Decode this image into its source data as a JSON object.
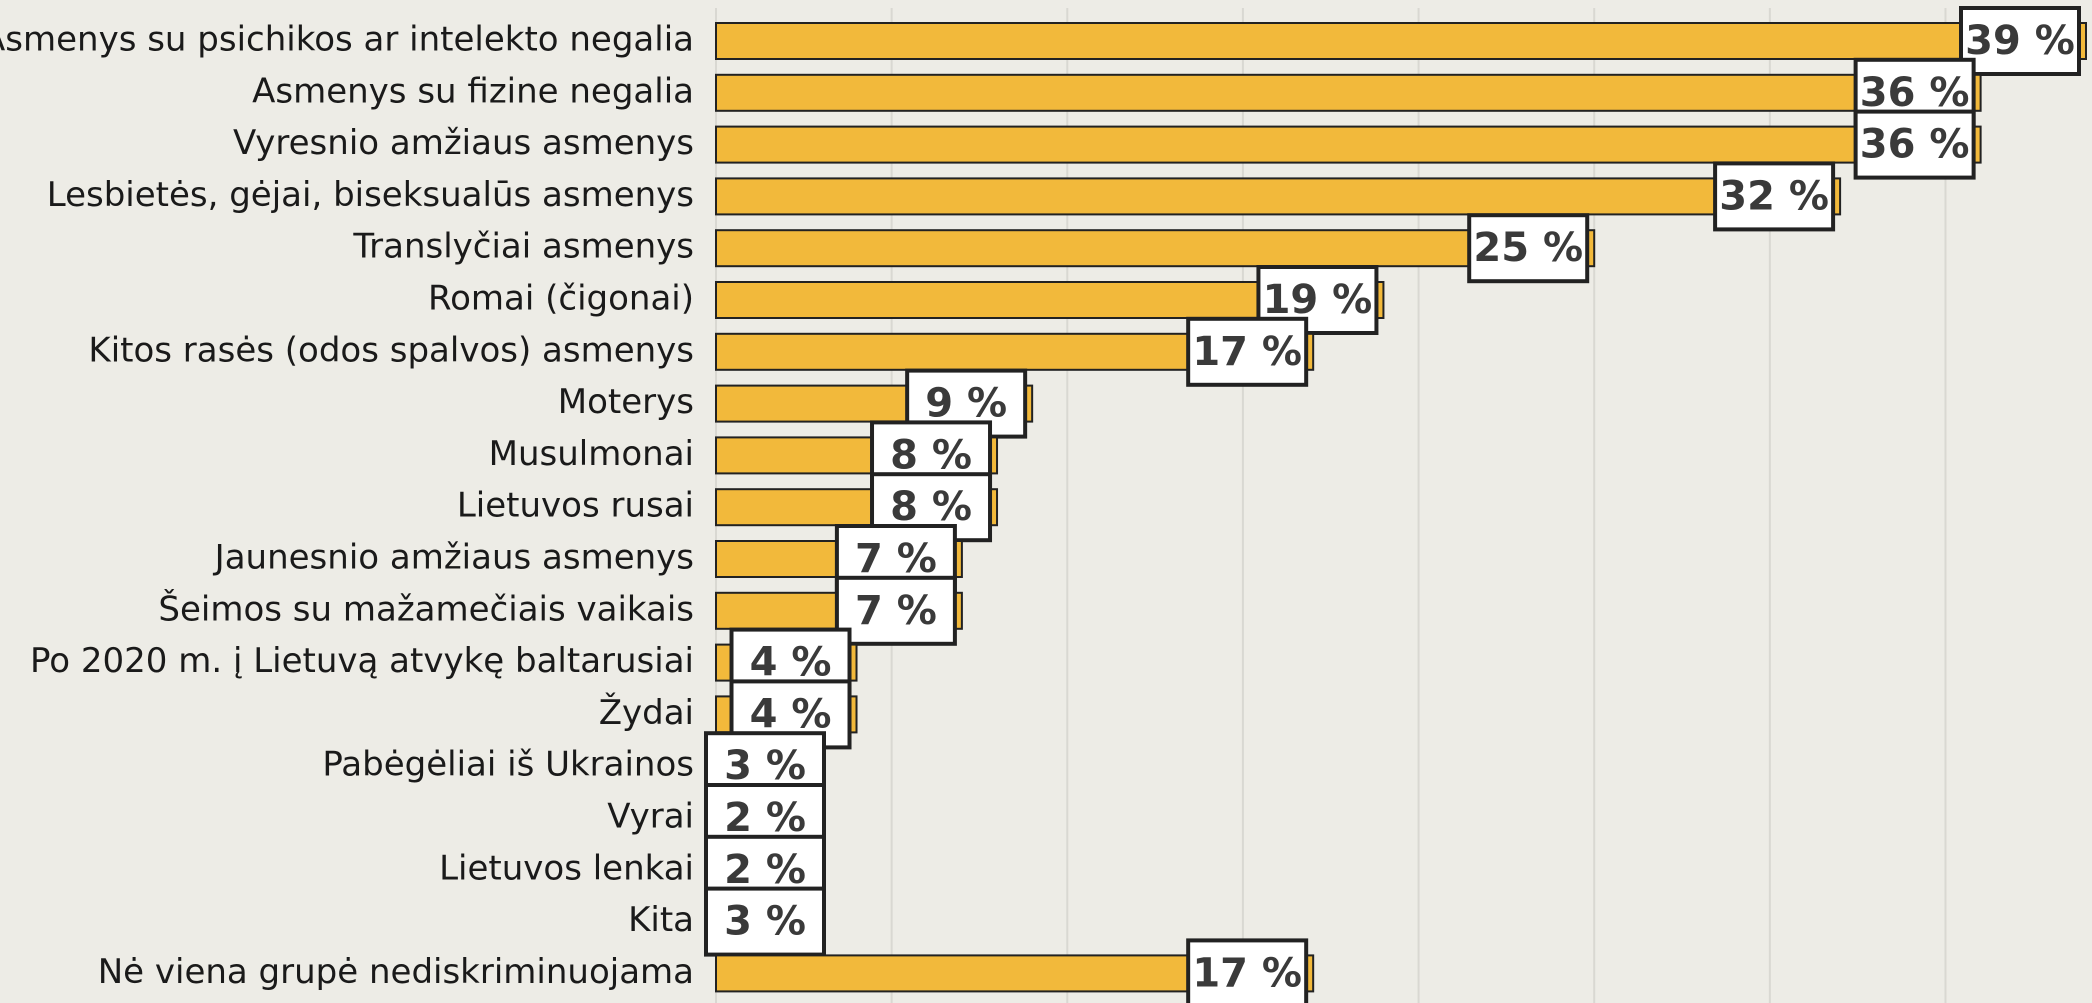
{
  "chart_data": {
    "type": "bar",
    "orientation": "horizontal",
    "categories": [
      "Asmenys su psichikos ar intelekto negalia",
      "Asmenys su fizine negalia",
      "Vyresnio amžiaus asmenys",
      "Lesbietės, gėjai, biseksualūs asmenys",
      "Translyčiai asmenys",
      "Romai (čigonai)",
      "Kitos rasės (odos spalvos) asmenys",
      "Moterys",
      "Musulmonai",
      "Lietuvos rusai",
      "Jaunesnio amžiaus asmenys",
      "Šeimos su mažamečiais vaikais",
      "Po 2020 m. į Lietuvą atvykę baltarusiai",
      "Žydai",
      "Pabėgėliai iš Ukrainos",
      "Vyrai",
      "Lietuvos lenkai",
      "Kita",
      "Nė viena grupė nediskriminuojama"
    ],
    "values": [
      39,
      36,
      36,
      32,
      25,
      19,
      17,
      9,
      8,
      8,
      7,
      7,
      4,
      4,
      3,
      2,
      2,
      3,
      17
    ],
    "value_labels": [
      "39 %",
      "36 %",
      "36 %",
      "32 %",
      "25 %",
      "19 %",
      "17 %",
      "9 %",
      "8 %",
      "8 %",
      "7 %",
      "7 %",
      "4 %",
      "4 %",
      "3 %",
      "2 %",
      "2 %",
      "3 %",
      "17 %"
    ],
    "color": "#f2b93b",
    "xlim": [
      0,
      39
    ],
    "xticks": [
      0,
      5,
      10,
      15,
      20,
      25,
      30,
      35
    ],
    "grid": true
  }
}
